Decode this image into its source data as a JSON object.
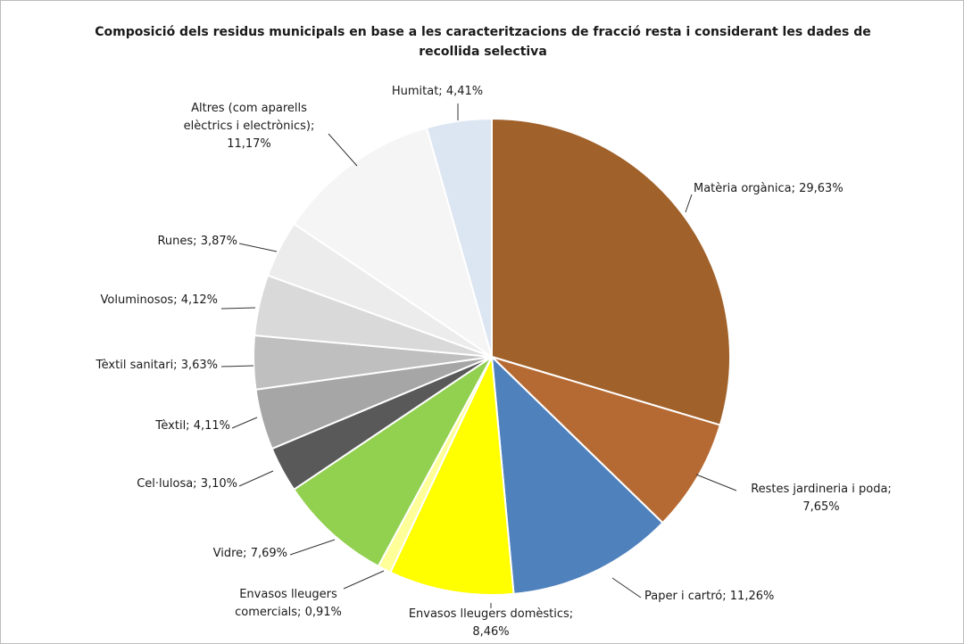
{
  "chart_data": {
    "type": "pie",
    "title": "Composició dels residus municipals en base a les caracteritzacions de fracció resta i considerant les dades de recollida selectiva",
    "slices": [
      {
        "label": "Matèria orgànica",
        "value_text": "29,63%",
        "value": 29.63,
        "color": "#A0612A"
      },
      {
        "label": "Restes jardineria i poda",
        "value_text": "7,65%",
        "value": 7.65,
        "color": "#B66A33"
      },
      {
        "label": "Paper i cartró",
        "value_text": "11,26%",
        "value": 11.26,
        "color": "#4F81BD"
      },
      {
        "label": "Envasos lleugers domèstics",
        "value_text": "8,46%",
        "value": 8.46,
        "color": "#FFFF00"
      },
      {
        "label": "Envasos lleugers comercials",
        "value_text": "0,91%",
        "value": 0.91,
        "color": "#FFFF99"
      },
      {
        "label": "Vidre",
        "value_text": "7,69%",
        "value": 7.69,
        "color": "#92D050"
      },
      {
        "label": "Cel·lulosa",
        "value_text": "3,10%",
        "value": 3.1,
        "color": "#595959"
      },
      {
        "label": "Tèxtil",
        "value_text": "4,11%",
        "value": 4.11,
        "color": "#A6A6A6"
      },
      {
        "label": "Tèxtil sanitari",
        "value_text": "3,63%",
        "value": 3.63,
        "color": "#BFBFBF"
      },
      {
        "label": "Voluminosos",
        "value_text": "4,12%",
        "value": 4.12,
        "color": "#D9D9D9"
      },
      {
        "label": "Runes",
        "value_text": "3,87%",
        "value": 3.87,
        "color": "#ECECEC"
      },
      {
        "label": "Altres (com aparells elèctrics i electrònics)",
        "value_text": "11,17%",
        "value": 11.17,
        "color": "#F5F5F5"
      },
      {
        "label": "Humitat",
        "value_text": "4,41%",
        "value": 4.41,
        "color": "#DCE6F2"
      }
    ],
    "start": "12 o'clock",
    "direction": "clockwise",
    "legend": "none"
  }
}
